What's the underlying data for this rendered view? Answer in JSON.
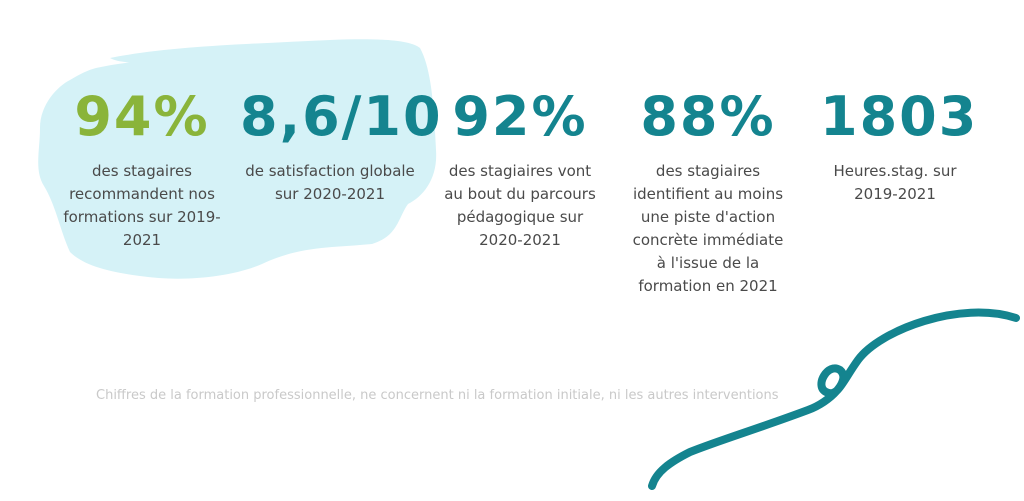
{
  "colors": {
    "accent_green": "#8ab43a",
    "accent_teal": "#14848f",
    "paint_splash": "#d5f2f7",
    "footnote": "#c9c9c9"
  },
  "stats": [
    {
      "value": "94%",
      "desc": "des stagaires recommandent nos formations sur 2019-2021"
    },
    {
      "value": "8,6/10",
      "desc": "de satisfaction globale sur 2020-2021"
    },
    {
      "value": "92%",
      "desc": "des stagiaires vont au bout du parcours pédagogique sur 2020-2021"
    },
    {
      "value": "88%",
      "desc": "des stagiaires identifient au moins une piste d'action concrète immédiate à l'issue de la formation en 2021"
    },
    {
      "value": "1803",
      "desc": "Heures.stag. sur 2019-2021"
    }
  ],
  "footnote": "Chiffres de la formation professionnelle, ne concernent ni la formation initiale, ni les autres interventions",
  "decorations": {
    "background_shape": "brush-splash",
    "flourish": "teal-swirl-line"
  }
}
